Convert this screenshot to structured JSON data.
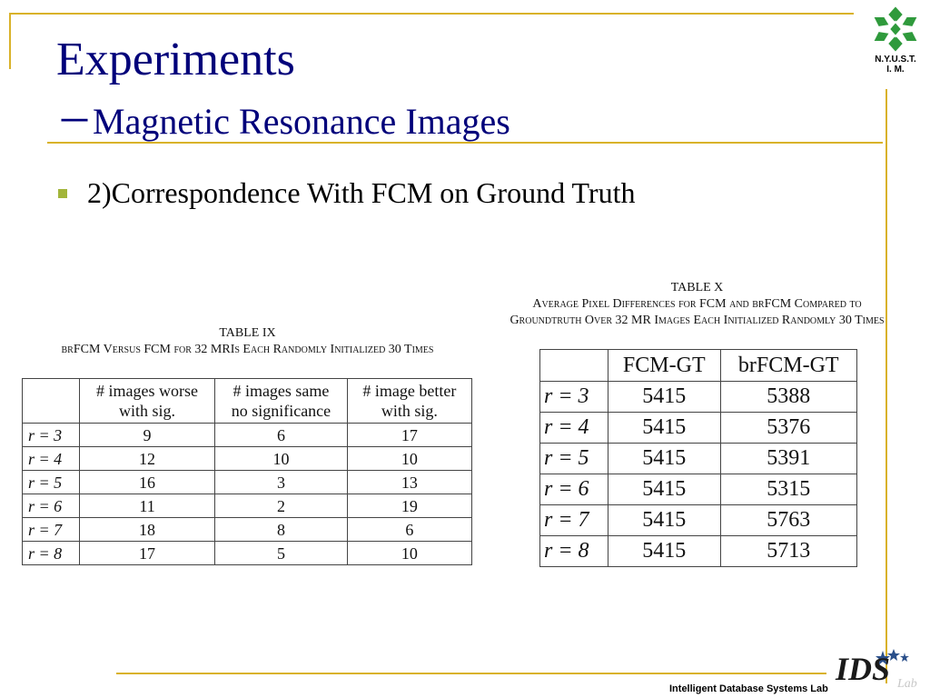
{
  "slide": {
    "title": "Experiments",
    "subtitle": "－Magnetic Resonance Images",
    "bullet": "2)Correspondence With FCM on Ground Truth"
  },
  "logo": {
    "line1": "N.Y.U.S.T.",
    "line2": "I. M."
  },
  "footer": {
    "lab": "Intelligent Database Systems Lab",
    "ids_logo_text": "IDS Lab"
  },
  "table9": {
    "caption_title": "TABLE   IX",
    "caption_text": "brFCM Versus FCM for 32 MRIs Each Randomly Initialized 30 Times",
    "headers": [
      "",
      [
        "# images worse",
        "with sig."
      ],
      [
        "# images same",
        "no significance"
      ],
      [
        "# image better",
        "with sig."
      ]
    ],
    "rows": [
      [
        "r = 3",
        "9",
        "6",
        "17"
      ],
      [
        "r = 4",
        "12",
        "10",
        "10"
      ],
      [
        "r = 5",
        "16",
        "3",
        "13"
      ],
      [
        "r = 6",
        "11",
        "2",
        "19"
      ],
      [
        "r = 7",
        "18",
        "8",
        "6"
      ],
      [
        "r = 8",
        "17",
        "5",
        "10"
      ]
    ]
  },
  "table10": {
    "caption_title": "TABLE   X",
    "caption_line1": "Average Pixel Differences for FCM and brFCM Compared to",
    "caption_line2": "Groundtruth Over 32 MR Images Each Initialized Randomly 30 Times",
    "headers": [
      "",
      "FCM-GT",
      "brFCM-GT"
    ],
    "rows": [
      [
        "r = 3",
        "5415",
        "5388"
      ],
      [
        "r = 4",
        "5415",
        "5376"
      ],
      [
        "r = 5",
        "5415",
        "5391"
      ],
      [
        "r = 6",
        "5415",
        "5315"
      ],
      [
        "r = 7",
        "5415",
        "5763"
      ],
      [
        "r = 8",
        "5415",
        "5713"
      ]
    ]
  },
  "colors": {
    "title": "#00007a",
    "rule": "#d9b22a",
    "bullet": "#a2b53a",
    "logo": "#2f9a3c"
  }
}
